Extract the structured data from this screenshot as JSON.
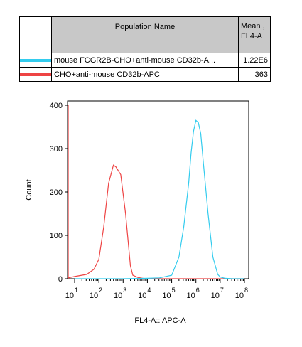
{
  "legend": {
    "header_name": "Population Name",
    "header_mean_line1": "Mean ,",
    "header_mean_line2": "FL4-A",
    "rows": [
      {
        "name": "mouse FCGR2B-CHO+anti-mouse CD32b-A...",
        "mean": "1.22E6",
        "color": "#33ccee"
      },
      {
        "name": "CHO+anti-mouse CD32b-APC",
        "mean": "363",
        "color": "#ee4444"
      }
    ]
  },
  "chart_data": {
    "type": "line",
    "xlabel": "FL4-A:: APC-A",
    "ylabel": "Count",
    "ylim": [
      0,
      400
    ],
    "yticks": [
      0,
      100,
      200,
      300,
      400
    ],
    "xscale": "log",
    "xticks": [
      {
        "base": "10",
        "exp": "1"
      },
      {
        "base": "10",
        "exp": "2"
      },
      {
        "base": "10",
        "exp": "3"
      },
      {
        "base": "10",
        "exp": "4"
      },
      {
        "base": "10",
        "exp": "5"
      },
      {
        "base": "10",
        "exp": "6"
      },
      {
        "base": "10",
        "exp": "7"
      },
      {
        "base": "10",
        "exp": "8"
      }
    ],
    "xlog_range": [
      1,
      8
    ],
    "series": [
      {
        "legend_index": 1,
        "color": "#ee4444",
        "x": [
          0.2,
          0.3,
          0.5,
          1,
          1.5,
          1.8,
          2.0,
          2.2,
          2.4,
          2.6,
          2.7,
          2.9,
          3.1,
          3.3,
          3.4,
          3.6,
          3.8,
          4.0,
          4.5,
          5.0,
          6.0,
          7.0,
          8.0
        ],
        "y": [
          400,
          0,
          2,
          5,
          10,
          22,
          45,
          120,
          220,
          262,
          258,
          240,
          150,
          30,
          8,
          3,
          1,
          0,
          0,
          0,
          0,
          0,
          0
        ]
      },
      {
        "legend_index": 0,
        "color": "#33ccee",
        "x": [
          1,
          2,
          3,
          4,
          4.5,
          5.0,
          5.3,
          5.5,
          5.7,
          5.8,
          5.9,
          6.0,
          6.1,
          6.2,
          6.3,
          6.5,
          6.7,
          6.9,
          7.0,
          7.2,
          7.5,
          8.0
        ],
        "y": [
          0,
          0,
          0,
          1,
          2,
          8,
          50,
          120,
          220,
          290,
          340,
          365,
          360,
          335,
          270,
          150,
          50,
          10,
          4,
          1,
          0,
          0
        ]
      }
    ]
  }
}
